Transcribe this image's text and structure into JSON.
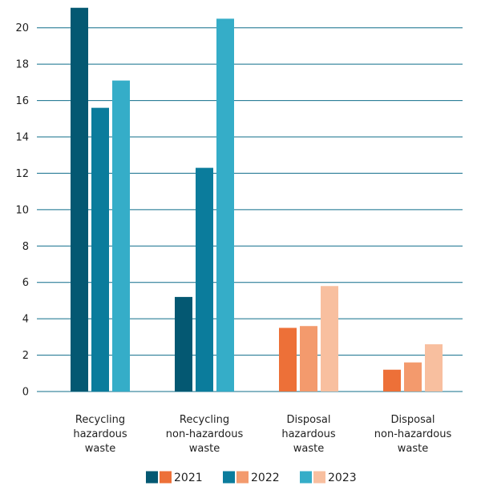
{
  "chart_data": {
    "type": "bar",
    "title": "",
    "xlabel": "",
    "ylabel": "",
    "ylim": [
      0,
      21
    ],
    "yticks": [
      0,
      2,
      4,
      6,
      8,
      10,
      12,
      14,
      16,
      18,
      20
    ],
    "grid": true,
    "legend_position": "bottom",
    "categories": [
      [
        "Recycling",
        "hazardous",
        "waste"
      ],
      [
        "Recycling",
        "non-hazardous",
        "waste"
      ],
      [
        "Disposal",
        "hazardous",
        "waste"
      ],
      [
        "Disposal",
        "non-hazardous",
        "waste"
      ]
    ],
    "series": [
      {
        "name": "2021",
        "values": [
          21.1,
          5.2,
          3.5,
          1.2
        ],
        "colors": [
          "#045872",
          "#045872",
          "#ed7038",
          "#ed7038"
        ]
      },
      {
        "name": "2022",
        "values": [
          15.6,
          12.3,
          3.6,
          1.6
        ],
        "colors": [
          "#0b7c9c",
          "#0b7c9c",
          "#f39a6d",
          "#f39a6d"
        ]
      },
      {
        "name": "2023",
        "values": [
          17.1,
          20.5,
          5.8,
          2.6
        ],
        "colors": [
          "#35adc8",
          "#35adc8",
          "#f8bf9f",
          "#f8bf9f"
        ]
      }
    ],
    "legend": [
      {
        "label": "2021",
        "swatches": [
          "#045872",
          "#ed7038"
        ]
      },
      {
        "label": "2022",
        "swatches": [
          "#0b7c9c",
          "#f39a6d"
        ]
      },
      {
        "label": "2023",
        "swatches": [
          "#35adc8",
          "#f8bf9f"
        ]
      }
    ],
    "grid_color": "#0f6d8a"
  }
}
